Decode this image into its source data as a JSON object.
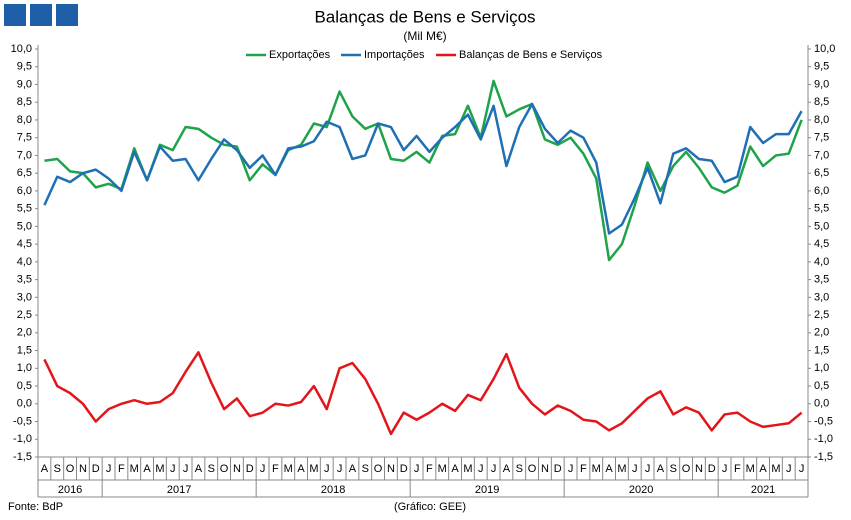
{
  "chart_data": {
    "type": "line",
    "title": "Balanças de Bens e Serviços",
    "subtitle": "(Mil M€)",
    "source": "Fonte: BdP",
    "credit": "(Gráfico: GEE)",
    "categories": [
      "A",
      "S",
      "O",
      "N",
      "D",
      "J",
      "F",
      "M",
      "A",
      "M",
      "J",
      "J",
      "A",
      "S",
      "O",
      "N",
      "D",
      "J",
      "F",
      "M",
      "A",
      "M",
      "J",
      "J",
      "A",
      "S",
      "O",
      "N",
      "D",
      "J",
      "F",
      "M",
      "A",
      "M",
      "J",
      "J",
      "A",
      "S",
      "O",
      "N",
      "D",
      "J",
      "F",
      "M",
      "A",
      "M",
      "J",
      "J",
      "A",
      "S",
      "O",
      "N",
      "D",
      "J",
      "F",
      "M",
      "A",
      "M",
      "J",
      "J"
    ],
    "years": [
      "2016",
      "2017",
      "2018",
      "2019",
      "2020",
      "2021"
    ],
    "series": [
      {
        "name": "Exportações",
        "color": "#1fa34a",
        "values": [
          6.85,
          6.9,
          6.55,
          6.5,
          6.1,
          6.2,
          6.05,
          7.2,
          6.3,
          7.3,
          7.15,
          7.8,
          7.75,
          7.5,
          7.3,
          7.25,
          6.3,
          6.75,
          6.45,
          7.15,
          7.3,
          7.9,
          7.8,
          8.8,
          8.1,
          7.75,
          7.9,
          6.9,
          6.85,
          7.1,
          6.8,
          7.55,
          7.6,
          8.4,
          7.5,
          9.1,
          8.1,
          8.3,
          8.45,
          7.45,
          7.3,
          7.5,
          7.05,
          6.35,
          4.05,
          4.5,
          5.6,
          6.8,
          6.0,
          6.7,
          7.1,
          6.65,
          6.1,
          5.95,
          6.15,
          7.25,
          6.7,
          7.0,
          7.05,
          8.0
        ]
      },
      {
        "name": "Importações",
        "color": "#1f6fb5",
        "values": [
          5.6,
          6.4,
          6.25,
          6.5,
          6.6,
          6.35,
          6.0,
          7.1,
          6.3,
          7.25,
          6.85,
          6.9,
          6.3,
          6.9,
          7.45,
          7.15,
          6.65,
          7.0,
          6.45,
          7.2,
          7.25,
          7.4,
          7.95,
          7.8,
          6.9,
          7.0,
          7.9,
          7.8,
          7.15,
          7.55,
          7.1,
          7.5,
          7.8,
          8.15,
          7.45,
          8.4,
          6.7,
          7.8,
          8.45,
          7.75,
          7.35,
          7.7,
          7.5,
          6.8,
          4.8,
          5.05,
          5.8,
          6.65,
          5.65,
          7.05,
          7.2,
          6.9,
          6.85,
          6.25,
          6.4,
          7.8,
          7.35,
          7.6,
          7.6,
          8.25
        ]
      },
      {
        "name": "Balanças de Bens e Serviços",
        "color": "#e3151a",
        "values": [
          1.25,
          0.5,
          0.3,
          0.0,
          -0.5,
          -0.15,
          0.0,
          0.1,
          0.0,
          0.05,
          0.3,
          0.9,
          1.45,
          0.6,
          -0.15,
          0.15,
          -0.35,
          -0.25,
          0.0,
          -0.05,
          0.05,
          0.5,
          -0.15,
          1.0,
          1.15,
          0.7,
          0.0,
          -0.85,
          -0.25,
          -0.45,
          -0.25,
          0.0,
          -0.2,
          0.25,
          0.1,
          0.7,
          1.4,
          0.45,
          0.0,
          -0.3,
          -0.05,
          -0.2,
          -0.45,
          -0.5,
          -0.75,
          -0.55,
          -0.2,
          0.15,
          0.35,
          -0.3,
          -0.1,
          -0.25,
          -0.75,
          -0.3,
          -0.25,
          -0.5,
          -0.65,
          -0.6,
          -0.55,
          -0.25
        ]
      }
    ],
    "ylim": [
      -1.5,
      10
    ],
    "yticks": [
      {
        "value": -1.5,
        "label": "-1,5"
      },
      {
        "value": -1,
        "label": "-1,0"
      },
      {
        "value": -0.5,
        "label": "-0,5"
      },
      {
        "value": 0,
        "label": "0,0"
      },
      {
        "value": 0.5,
        "label": "0,5"
      },
      {
        "value": 1,
        "label": "1,0"
      },
      {
        "value": 1.5,
        "label": "1,5"
      },
      {
        "value": 2,
        "label": "2,0"
      },
      {
        "value": 2.5,
        "label": "2,5"
      },
      {
        "value": 3,
        "label": "3,0"
      },
      {
        "value": 3.5,
        "label": "3,5"
      },
      {
        "value": 4,
        "label": "4,0"
      },
      {
        "value": 4.5,
        "label": "4,5"
      },
      {
        "value": 5,
        "label": "5,0"
      },
      {
        "value": 5.5,
        "label": "5,5"
      },
      {
        "value": 6,
        "label": "6,0"
      },
      {
        "value": 6.5,
        "label": "6,5"
      },
      {
        "value": 7,
        "label": "7,0"
      },
      {
        "value": 7.5,
        "label": "7,5"
      },
      {
        "value": 8,
        "label": "8,0"
      },
      {
        "value": 8.5,
        "label": "8,5"
      },
      {
        "value": 9,
        "label": "9,0"
      },
      {
        "value": 9.5,
        "label": "9,5"
      },
      {
        "value": 10,
        "label": "10,0"
      }
    ],
    "y2lim": [
      -1.5,
      10
    ],
    "y2ticks": [
      {
        "value": -1.5,
        "label": "-1,5"
      },
      {
        "value": -1,
        "label": "-1,0"
      },
      {
        "value": -0.5,
        "label": "-0,5"
      },
      {
        "value": 0,
        "label": "0,0"
      },
      {
        "value": 0.5,
        "label": "0,5"
      },
      {
        "value": 1,
        "label": "1,0"
      },
      {
        "value": 1.5,
        "label": "1,5"
      },
      {
        "value": 2,
        "label": "2,0"
      },
      {
        "value": 2.5,
        "label": "2,5"
      },
      {
        "value": 3,
        "label": "3,0"
      },
      {
        "value": 3.5,
        "label": "3,5"
      },
      {
        "value": 4,
        "label": "4,0"
      },
      {
        "value": 4.5,
        "label": "4,5"
      },
      {
        "value": 5,
        "label": "5,0"
      },
      {
        "value": 5.5,
        "label": "5,5"
      },
      {
        "value": 6,
        "label": "6,0"
      },
      {
        "value": 6.5,
        "label": "6,5"
      },
      {
        "value": 7,
        "label": "7,0"
      },
      {
        "value": 7.5,
        "label": "7,5"
      },
      {
        "value": 8,
        "label": "8,0"
      },
      {
        "value": 8.5,
        "label": "8,5"
      },
      {
        "value": 9,
        "label": "9,0"
      },
      {
        "value": 9.5,
        "label": "9,5"
      },
      {
        "value": 10,
        "label": "10,0"
      }
    ],
    "grid": false
  }
}
